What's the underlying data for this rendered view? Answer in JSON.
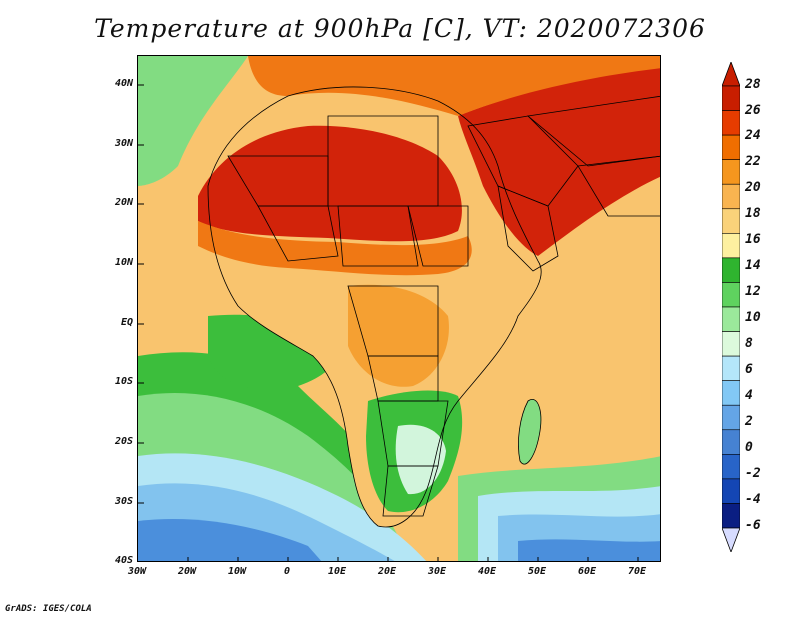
{
  "title": "Temperature at 900hPa [C], VT: 2020072306",
  "credit": "GrADS: IGES/COLA",
  "map": {
    "lat_labels": [
      "40N",
      "30N",
      "20N",
      "10N",
      "EQ",
      "10S",
      "20S",
      "30S",
      "40S"
    ],
    "lon_labels": [
      "30W",
      "20W",
      "10W",
      "0",
      "10E",
      "20E",
      "30E",
      "40E",
      "50E",
      "60E",
      "70E"
    ],
    "lat_range": [
      -40,
      45
    ],
    "lon_range": [
      -30,
      75
    ]
  },
  "colorbar": {
    "labels": [
      "28",
      "26",
      "24",
      "22",
      "20",
      "18",
      "16",
      "14",
      "12",
      "10",
      "8",
      "6",
      "4",
      "2",
      "0",
      "-2",
      "-4",
      "-6"
    ],
    "colors": [
      "#c81e00",
      "#e63c00",
      "#f06e00",
      "#f5961e",
      "#f9b450",
      "#fad27a",
      "#fdf0a0",
      "#2fb42f",
      "#5fd25f",
      "#9be99b",
      "#dcfadc",
      "#b4e6fa",
      "#82c8f5",
      "#64a5e6",
      "#4682d2",
      "#2864c8",
      "#1446b4",
      "#0a1e82"
    ],
    "top_arrow_color": "#c81e00",
    "bottom_arrow_color": "#d7dcff"
  },
  "palette": {
    "hot": "#d2230a",
    "warm": "#f07814",
    "orange": "#f5a032",
    "tan": "#f9c46e",
    "light": "#fde6a0",
    "green": "#3cbe3c",
    "lgreen": "#82dc82",
    "pale": "#d2f5dc",
    "cyan": "#b4e6f5",
    "sky": "#82c3ee",
    "blue": "#4b8fdc",
    "deep": "#2d6ec8"
  }
}
